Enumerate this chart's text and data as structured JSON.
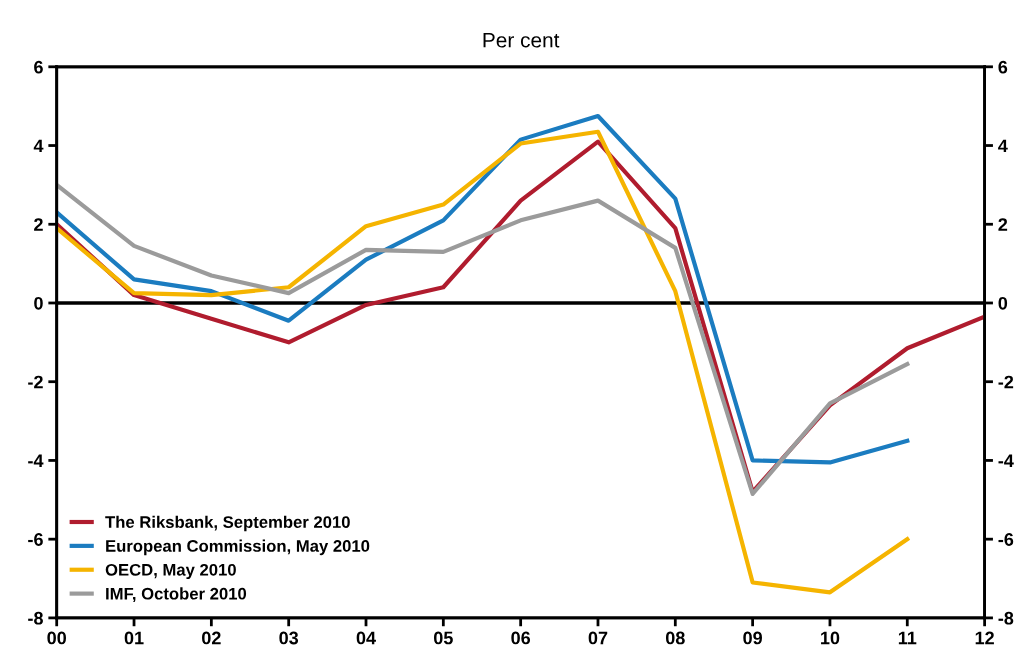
{
  "chart_data": {
    "type": "line",
    "title": "Per cent",
    "categories": [
      "00",
      "01",
      "02",
      "03",
      "04",
      "05",
      "06",
      "07",
      "08",
      "09",
      "10",
      "11",
      "12"
    ],
    "series": [
      {
        "name": "The Riksbank, September 2010",
        "color": "#b01c2e",
        "values": [
          2.0,
          0.2,
          -0.4,
          -1.0,
          -0.05,
          0.4,
          2.6,
          4.1,
          1.9,
          -4.8,
          -2.6,
          -1.15,
          -0.35
        ]
      },
      {
        "name": "European Commission, May 2010",
        "color": "#1b7cc0",
        "values": [
          2.3,
          0.6,
          0.3,
          -0.45,
          1.1,
          2.1,
          4.15,
          4.75,
          2.65,
          -4.0,
          -4.05,
          -3.5,
          null
        ]
      },
      {
        "name": "OECD, May 2010",
        "color": "#f5b400",
        "values": [
          1.9,
          0.25,
          0.2,
          0.4,
          1.95,
          2.5,
          4.05,
          4.35,
          0.3,
          -7.1,
          -7.35,
          -6.0,
          null
        ]
      },
      {
        "name": "IMF, October 2010",
        "color": "#9b9b9b",
        "values": [
          3.0,
          1.45,
          0.7,
          0.25,
          1.35,
          1.3,
          2.1,
          2.6,
          1.4,
          -4.85,
          -2.55,
          -1.55,
          null
        ]
      }
    ],
    "ylim": [
      -8,
      6
    ],
    "yticks": [
      -8,
      -6,
      -4,
      -2,
      0,
      2,
      4,
      6
    ],
    "y2lim": [
      -8,
      6
    ],
    "y2ticks": [
      -8,
      -6,
      -4,
      -2,
      0,
      2,
      4,
      6
    ],
    "ref_lines": [
      {
        "axis": "y",
        "value": 0,
        "color": "#000000"
      }
    ],
    "grid": false,
    "legend": "bottom left",
    "marker": "none",
    "line_style": "solid"
  }
}
